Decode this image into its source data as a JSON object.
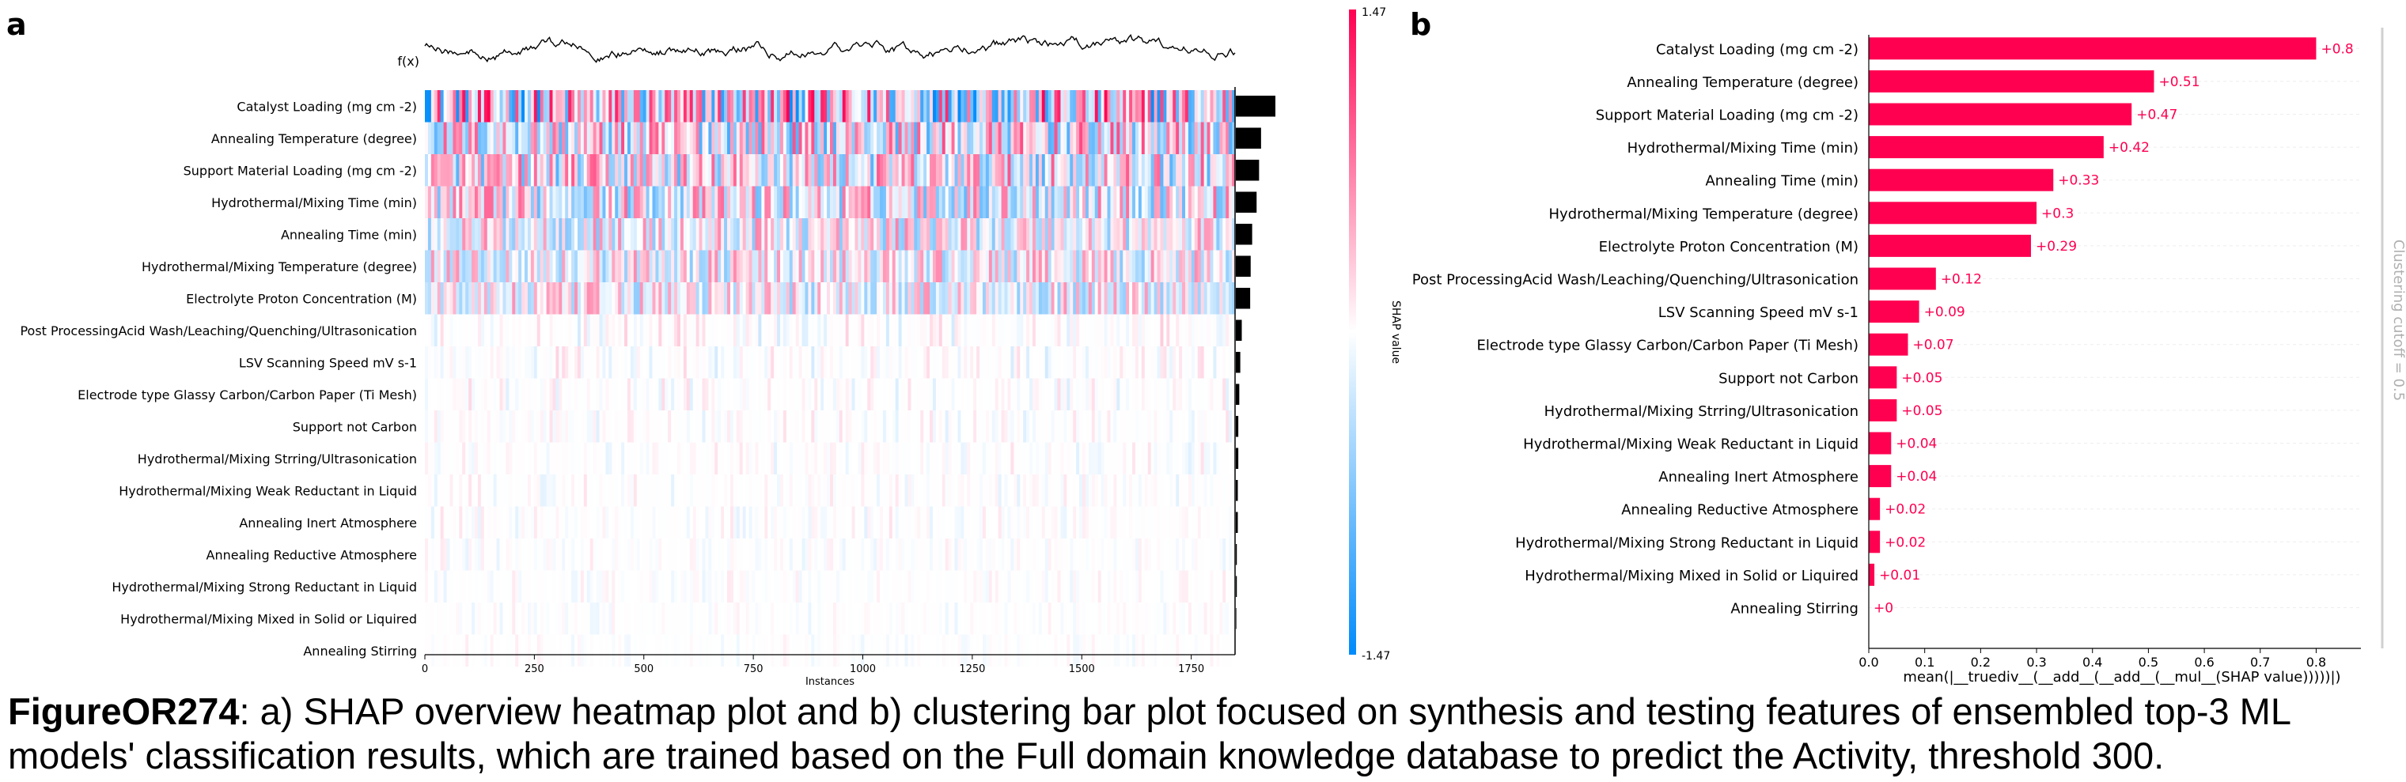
{
  "panels": {
    "a": "a",
    "b": "b"
  },
  "heatmap": {
    "fx_label": "f(x)",
    "xlabel": "Instances",
    "xticks": [
      "0",
      "250",
      "500",
      "750",
      "1000",
      "1250",
      "1500",
      "1750"
    ],
    "colorbar_max": "1.47",
    "colorbar_min": "-1.47",
    "colorbar_label": "SHAP value"
  },
  "bar": {
    "xlabel": "mean(|__truediv__(__add__(__add__(__mul__(SHAP value)))))|)",
    "xticks": [
      "0.0",
      "0.1",
      "0.2",
      "0.3",
      "0.4",
      "0.5",
      "0.6",
      "0.7",
      "0.8"
    ],
    "cutoff_label": "Clustering cutoff = 0.5",
    "value_labels": [
      "+0.8",
      "+0.51",
      "+0.47",
      "+0.42",
      "+0.33",
      "+0.3",
      "+0.29",
      "+0.12",
      "+0.09",
      "+0.07",
      "+0.05",
      "+0.05",
      "+0.04",
      "+0.04",
      "+0.02",
      "+0.02",
      "+0.01",
      "+0"
    ]
  },
  "chart_data": [
    {
      "type": "heatmap",
      "title": "",
      "xlabel": "Instances",
      "ylabel": "",
      "xlim": [
        0,
        1850
      ],
      "color_range": [
        -1.47,
        1.47
      ],
      "colorbar_label": "SHAP value",
      "features": [
        "Catalyst Loading (mg cm -2)",
        "Annealing Temperature (degree)",
        "Support Material Loading (mg cm -2)",
        "Hydrothermal/Mixing Time (min)",
        "Annealing Time (min)",
        "Hydrothermal/Mixing Temperature (degree)",
        "Electrolyte Proton Concentration (M)",
        "Post ProcessingAcid Wash/Leaching/Quenching/Ultrasonication",
        "LSV Scanning Speed mV s-1",
        "Electrode type Glassy Carbon/Carbon Paper (Ti Mesh)",
        "Support not Carbon",
        "Hydrothermal/Mixing Strring/Ultrasonication",
        "Hydrothermal/Mixing Weak Reductant in Liquid",
        "Annealing Inert Atmosphere",
        "Annealing Reductive Atmosphere",
        "Hydrothermal/Mixing Strong Reductant in Liquid",
        "Hydrothermal/Mixing Mixed in Solid or Liquired",
        "Annealing Stirring"
      ],
      "importance": [
        0.8,
        0.51,
        0.47,
        0.42,
        0.33,
        0.3,
        0.29,
        0.12,
        0.09,
        0.07,
        0.05,
        0.05,
        0.04,
        0.04,
        0.02,
        0.02,
        0.01,
        0
      ],
      "colors": {
        "positive": "#ff0051",
        "negative": "#008bfb"
      }
    },
    {
      "type": "bar",
      "title": "",
      "xlabel": "mean(|__truediv__(__add__(__add__(__mul__(SHAP value)))))|)",
      "ylabel": "",
      "xlim": [
        0,
        0.88
      ],
      "categories": [
        "Catalyst Loading (mg cm -2)",
        "Annealing Temperature (degree)",
        "Support Material Loading (mg cm -2)",
        "Hydrothermal/Mixing Time (min)",
        "Annealing Time (min)",
        "Hydrothermal/Mixing Temperature (degree)",
        "Electrolyte Proton Concentration (M)",
        "Post ProcessingAcid Wash/Leaching/Quenching/Ultrasonication",
        "LSV Scanning Speed mV s-1",
        "Electrode type Glassy Carbon/Carbon Paper (Ti Mesh)",
        "Support not Carbon",
        "Hydrothermal/Mixing Strring/Ultrasonication",
        "Hydrothermal/Mixing Weak Reductant in Liquid",
        "Annealing Inert Atmosphere",
        "Annealing Reductive Atmosphere",
        "Hydrothermal/Mixing Strong Reductant in Liquid",
        "Hydrothermal/Mixing Mixed in Solid or Liquired",
        "Annealing Stirring"
      ],
      "values": [
        0.8,
        0.51,
        0.47,
        0.42,
        0.33,
        0.3,
        0.29,
        0.12,
        0.09,
        0.07,
        0.05,
        0.05,
        0.04,
        0.04,
        0.02,
        0.02,
        0.01,
        0
      ],
      "bar_color": "#ff0051",
      "clustering_cutoff": 0.5
    }
  ],
  "caption": {
    "label": "FigureOR274",
    "text": ": a) SHAP overview heatmap plot and b) clustering bar plot focused on synthesis and testing features of ensembled top-3 ML models' classification results, which are trained based on the Full domain knowledge database to predict the Activity, threshold 300."
  }
}
